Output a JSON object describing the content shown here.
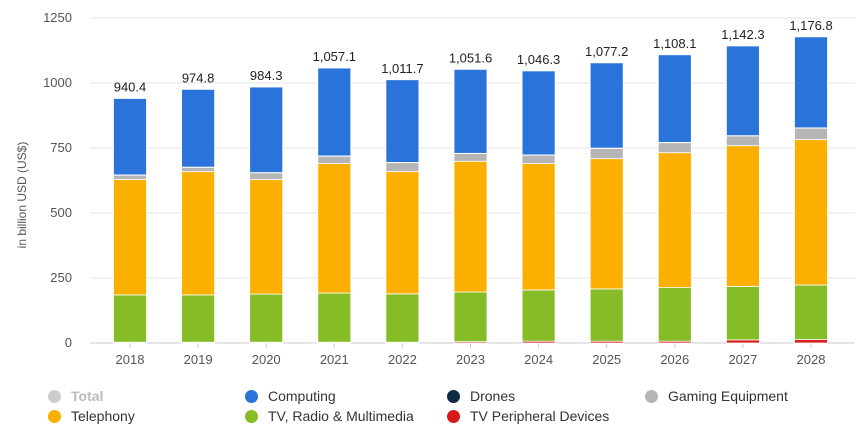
{
  "chart_data": {
    "type": "bar",
    "stacked": true,
    "ylabel": "in billion USD (US$)",
    "ylim": [
      0,
      1250
    ],
    "yticks": [
      "0",
      "250",
      "500",
      "750",
      "1000",
      "1250"
    ],
    "grid": true,
    "legend_placement": "bottom",
    "categories": [
      "2018",
      "2019",
      "2020",
      "2021",
      "2022",
      "2023",
      "2024",
      "2025",
      "2026",
      "2027",
      "2028"
    ],
    "totals": [
      "940.4",
      "974.8",
      "984.3",
      "1,057.1",
      "1,011.7",
      "1,051.6",
      "1,046.3",
      "1,077.2",
      "1,108.1",
      "1,142.3",
      "1,176.8"
    ],
    "series": [
      {
        "name": "TV Peripheral Devices",
        "color": "#d7191c",
        "values": [
          3,
          3,
          3,
          3,
          3,
          5,
          7,
          7,
          7,
          12,
          13
        ]
      },
      {
        "name": "TV, Radio & Multimedia",
        "color": "#86bc25",
        "values": [
          182,
          182,
          185,
          189,
          186,
          191,
          197,
          201,
          206,
          206,
          210
        ]
      },
      {
        "name": "Telephony",
        "color": "#fbb000",
        "values": [
          444,
          474,
          441,
          498,
          470,
          503,
          486,
          501,
          519,
          541,
          560
        ]
      },
      {
        "name": "Gaming Equipment",
        "color": "#b5b5b5",
        "values": [
          17,
          17,
          26,
          29,
          35,
          30,
          33,
          40,
          39,
          38,
          44
        ]
      },
      {
        "name": "Drones",
        "color": "#0d2b45",
        "values": [
          0.5,
          0.5,
          0.5,
          0.5,
          0.5,
          0.5,
          0.5,
          0.5,
          0.5,
          0.5,
          0.5
        ]
      },
      {
        "name": "Computing",
        "color": "#2a73da",
        "values": [
          294,
          299,
          329,
          338,
          318,
          323,
          323,
          328,
          337,
          345,
          350
        ]
      }
    ],
    "legend": [
      {
        "name": "Total",
        "color": "#cccccc",
        "hidden": true
      },
      {
        "name": "Computing",
        "color": "#2a73da"
      },
      {
        "name": "Drones",
        "color": "#0d2b45"
      },
      {
        "name": "Gaming Equipment",
        "color": "#b5b5b5"
      },
      {
        "name": "Telephony",
        "color": "#fbb000"
      },
      {
        "name": "TV, Radio & Multimedia",
        "color": "#86bc25"
      },
      {
        "name": "TV Peripheral Devices",
        "color": "#d7191c"
      }
    ]
  }
}
